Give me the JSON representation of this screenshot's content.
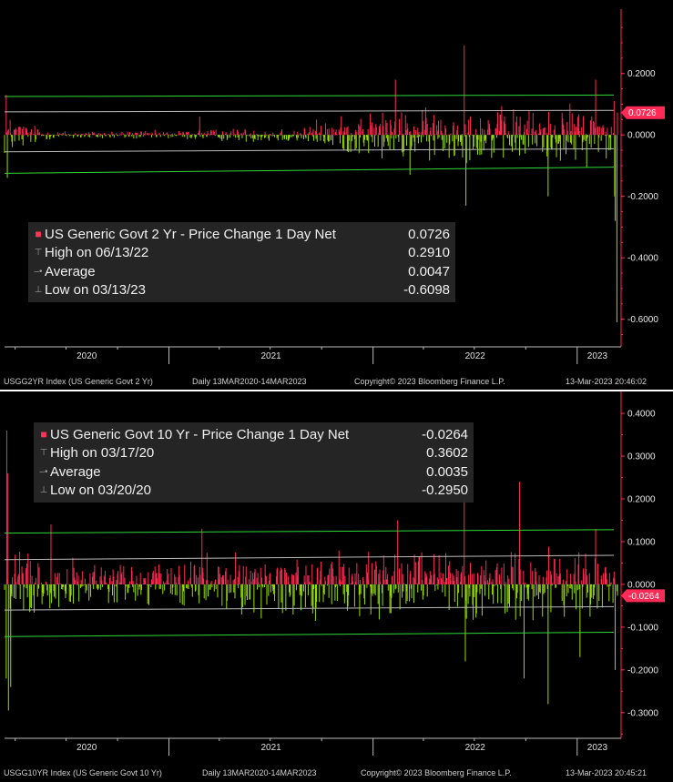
{
  "colors": {
    "positive": "#ff2a55",
    "negative": "#99dd00",
    "band": "#2fd83a",
    "trend": "#bbbbbb",
    "axis": "#ff2a55",
    "background": "#000000"
  },
  "chart_data": [
    {
      "type": "bar",
      "ticker": "USGG2YR Index (US Generic Govt 2 Yr)",
      "period": "Daily 13MAR2020-14MAR2023",
      "copyright": "Copyright© 2023 Bloomberg Finance L.P.",
      "timestamp": "13-Mar-2023 20:46:02",
      "x_range": [
        "2020-03-13",
        "2023-03-14"
      ],
      "x_tick_labels": [
        "2020",
        "2021",
        "2022",
        "2023"
      ],
      "ylim": [
        -0.69,
        0.38
      ],
      "y_ticks": [
        0.2,
        0.0,
        -0.2,
        -0.4,
        -0.6
      ],
      "y_tick_labels": [
        "0.2000",
        "0.0000",
        "-0.2000",
        "-0.4000",
        "-0.6000"
      ],
      "last_value_label": "0.0726",
      "last_value": 0.0726,
      "trend_lines": [
        {
          "start": 0.125,
          "end": 0.13
        },
        {
          "start": -0.055,
          "end": -0.045
        },
        {
          "start": 0.075,
          "end": 0.08
        },
        {
          "start": -0.125,
          "end": -0.105
        }
      ],
      "legend": [
        {
          "label": "US Generic Govt 2 Yr - Price Change 1 Day Net",
          "value": "0.0726"
        },
        {
          "label": "High on 06/13/22",
          "value": "0.2910"
        },
        {
          "label": "Average",
          "value": "0.0047"
        },
        {
          "label": "Low on 03/13/23",
          "value": "-0.6098"
        }
      ],
      "high": {
        "date": "2022-06-13",
        "value": 0.291
      },
      "low": {
        "date": "2023-03-13",
        "value": -0.6098
      },
      "average": 0.0047,
      "amplitude_by_year": [
        {
          "date": "2020-03-13",
          "amplitude": 0.06
        },
        {
          "date": "2020-06-01",
          "amplitude": 0.012
        },
        {
          "date": "2021-01-01",
          "amplitude": 0.012
        },
        {
          "date": "2021-09-01",
          "amplitude": 0.025
        },
        {
          "date": "2022-01-01",
          "amplitude": 0.07
        },
        {
          "date": "2023-03-14",
          "amplitude": 0.08
        }
      ],
      "notable_points": [
        {
          "date": "2020-03-16",
          "value": 0.13
        },
        {
          "date": "2020-03-18",
          "value": -0.14
        },
        {
          "date": "2021-02-25",
          "value": 0.06
        },
        {
          "date": "2021-09-22",
          "value": 0.05
        },
        {
          "date": "2022-02-10",
          "value": 0.18
        },
        {
          "date": "2022-03-08",
          "value": -0.13
        },
        {
          "date": "2022-06-13",
          "value": 0.291
        },
        {
          "date": "2022-06-16",
          "value": -0.23
        },
        {
          "date": "2022-11-10",
          "value": -0.2
        },
        {
          "date": "2023-02-03",
          "value": 0.18
        },
        {
          "date": "2023-03-08",
          "value": 0.11
        },
        {
          "date": "2023-03-09",
          "value": -0.2
        },
        {
          "date": "2023-03-10",
          "value": -0.28
        },
        {
          "date": "2023-03-13",
          "value": -0.6098
        },
        {
          "date": "2023-03-14",
          "value": 0.0726
        }
      ]
    },
    {
      "type": "bar",
      "ticker": "USGG10YR Index (US Generic Govt 10 Yr)",
      "period": "Daily 13MAR2020-14MAR2023",
      "copyright": "Copyright© 2023 Bloomberg Finance L.P.",
      "timestamp": "13-Mar-2023 20:45:21",
      "x_range": [
        "2020-03-13",
        "2023-03-14"
      ],
      "x_tick_labels": [
        "2020",
        "2021",
        "2022",
        "2023"
      ],
      "ylim": [
        -0.36,
        0.43
      ],
      "y_ticks": [
        0.4,
        0.3,
        0.2,
        0.1,
        0.0,
        -0.1,
        -0.2,
        -0.3
      ],
      "y_tick_labels": [
        "0.4000",
        "0.3000",
        "0.2000",
        "0.1000",
        "0.0000",
        "-0.1000",
        "-0.2000",
        "-0.3000"
      ],
      "last_value_label": "-0.0264",
      "last_value": -0.0264,
      "trend_lines": [
        {
          "start": 0.12,
          "end": 0.128
        },
        {
          "start": -0.122,
          "end": -0.112
        },
        {
          "start": 0.058,
          "end": 0.068
        },
        {
          "start": -0.06,
          "end": -0.052
        }
      ],
      "legend": [
        {
          "label": "US Generic Govt 10 Yr - Price Change 1 Day Net",
          "value": "-0.0264"
        },
        {
          "label": "High on 03/17/20",
          "value": "0.3602"
        },
        {
          "label": "Average",
          "value": "0.0035"
        },
        {
          "label": "Low on 03/20/20",
          "value": "-0.2950"
        }
      ],
      "high": {
        "date": "2020-03-17",
        "value": 0.3602
      },
      "low": {
        "date": "2020-03-20",
        "value": -0.295
      },
      "average": 0.0035,
      "amplitude_by_year": [
        {
          "date": "2020-03-13",
          "amplitude": 0.09
        },
        {
          "date": "2020-06-01",
          "amplitude": 0.045
        },
        {
          "date": "2021-01-01",
          "amplitude": 0.05
        },
        {
          "date": "2022-01-01",
          "amplitude": 0.075
        },
        {
          "date": "2023-03-14",
          "amplitude": 0.07
        }
      ],
      "notable_points": [
        {
          "date": "2020-03-16",
          "value": -0.22
        },
        {
          "date": "2020-03-17",
          "value": 0.3602
        },
        {
          "date": "2020-03-19",
          "value": 0.26
        },
        {
          "date": "2020-03-20",
          "value": -0.295
        },
        {
          "date": "2020-03-24",
          "value": -0.24
        },
        {
          "date": "2020-06-04",
          "value": 0.14
        },
        {
          "date": "2021-03-01",
          "value": 0.13
        },
        {
          "date": "2022-02-14",
          "value": 0.15
        },
        {
          "date": "2022-06-13",
          "value": 0.2
        },
        {
          "date": "2022-06-15",
          "value": -0.18
        },
        {
          "date": "2022-09-20",
          "value": 0.24
        },
        {
          "date": "2022-09-28",
          "value": -0.22
        },
        {
          "date": "2022-11-10",
          "value": -0.28
        },
        {
          "date": "2023-01-06",
          "value": -0.17
        },
        {
          "date": "2023-02-03",
          "value": 0.13
        },
        {
          "date": "2023-03-10",
          "value": -0.2
        },
        {
          "date": "2023-03-14",
          "value": -0.0264
        }
      ]
    }
  ]
}
